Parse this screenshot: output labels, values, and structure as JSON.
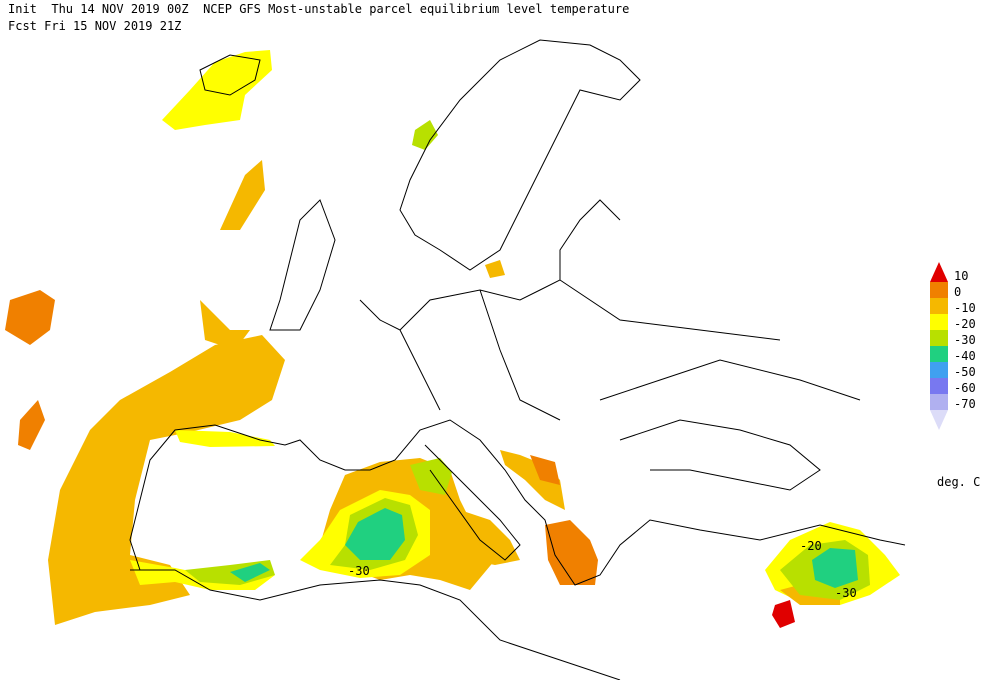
{
  "header": {
    "line1": "Init  Thu 14 NOV 2019 00Z  NCEP GFS Most-unstable parcel equilibrium level temperature",
    "line2": "Fcst Fri 15 NOV 2019 21Z"
  },
  "legend": {
    "labels": [
      "10",
      "0",
      "-10",
      "-20",
      "-30",
      "-40",
      "-50",
      "-60",
      "-70"
    ],
    "colors": [
      "#e00000",
      "#f08000",
      "#f5b800",
      "#ffff00",
      "#b8e000",
      "#20d080",
      "#40a0f0",
      "#7878f0",
      "#b0b0f0",
      "#dcdcf8"
    ],
    "unit": "deg. C"
  },
  "contour_labels": [
    "-30",
    "-20",
    "-30"
  ]
}
